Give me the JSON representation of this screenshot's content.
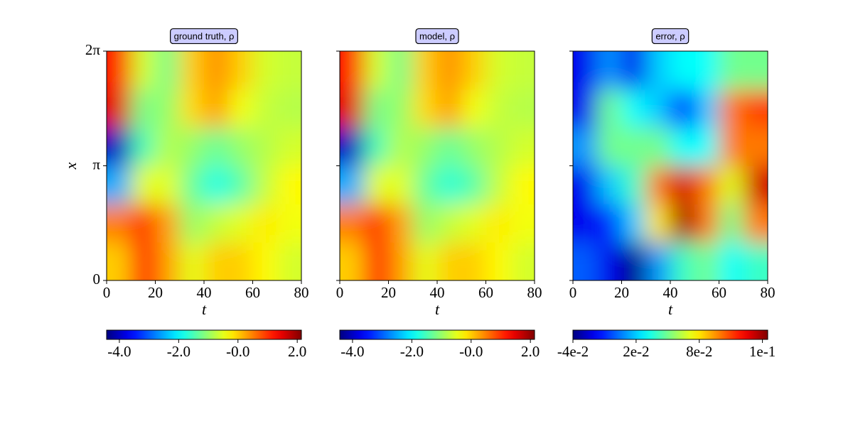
{
  "chart_data": [
    {
      "type": "heatmap",
      "title": "ground truth, ρ",
      "xlabel": "t",
      "ylabel": "x",
      "colormap": "jet",
      "x": [
        5,
        15,
        25,
        35,
        45,
        55,
        65,
        75
      ],
      "y": [
        0.52,
        1.57,
        2.62,
        3.67,
        4.71,
        5.76
      ],
      "z": [
        [
          0,
          1.3,
          0.3,
          -0.5,
          0,
          0,
          -0.3,
          -0.6
        ],
        [
          0.5,
          1.0,
          0.3,
          -1,
          -0.7,
          -0.5,
          -0.2,
          -0.4
        ],
        [
          -2.5,
          -0.5,
          -0.5,
          -1.3,
          -1.8,
          -1.4,
          -0.7,
          -0.3
        ],
        [
          -4,
          -1.5,
          -0.8,
          -1,
          -1.3,
          -1,
          -0.8,
          -0.6
        ],
        [
          1.5,
          -1.2,
          -1,
          -0.1,
          0.3,
          -0.4,
          -0.7,
          -0.8
        ],
        [
          1.2,
          -0.6,
          -1.2,
          0,
          0.4,
          0,
          -0.6,
          -0.7
        ]
      ],
      "xlim": [
        0,
        80
      ],
      "xticks": [
        0,
        20,
        40,
        60,
        80
      ],
      "ylim": [
        0,
        6.28318
      ],
      "yticks": [
        0,
        {
          "value": 3.14159,
          "label": "π"
        },
        {
          "value": 6.28318,
          "label": "2π"
        }
      ],
      "clim": [
        -4.43,
        2.14
      ],
      "cticks": [
        {
          "value": -4,
          "label": "-4.0"
        },
        {
          "value": -2,
          "label": "-2.0"
        },
        {
          "value": 0,
          "label": "-0.0"
        },
        {
          "value": 2,
          "label": "2.0"
        }
      ]
    },
    {
      "type": "heatmap",
      "title": "model, ρ",
      "xlabel": "t",
      "colormap": "jet",
      "x": [
        5,
        15,
        25,
        35,
        45,
        55,
        65,
        75
      ],
      "y": [
        0.52,
        1.57,
        2.62,
        3.67,
        4.71,
        5.76
      ],
      "z": [
        [
          0,
          1.3,
          0.3,
          -0.5,
          0,
          0,
          -0.3,
          -0.6
        ],
        [
          0.5,
          1.0,
          0.3,
          -1,
          -0.7,
          -0.5,
          -0.2,
          -0.4
        ],
        [
          -2.5,
          -0.5,
          -0.5,
          -1.3,
          -1.7,
          -1.4,
          -0.7,
          -0.3
        ],
        [
          -4,
          -1.5,
          -0.8,
          -1,
          -1.3,
          -1,
          -0.8,
          -0.6
        ],
        [
          1.5,
          -1.2,
          -1,
          -0.1,
          0.3,
          -0.4,
          -0.7,
          -0.8
        ],
        [
          1.2,
          -0.6,
          -1.2,
          0,
          0.4,
          0,
          -0.6,
          -0.7
        ]
      ],
      "xlim": [
        0,
        80
      ],
      "xticks": [
        0,
        20,
        40,
        60,
        80
      ],
      "clim": [
        -4.43,
        2.14
      ],
      "cticks": [
        {
          "value": -4,
          "label": "-4.0"
        },
        {
          "value": -2,
          "label": "-2.0"
        },
        {
          "value": 0,
          "label": "-0.0"
        },
        {
          "value": 2,
          "label": "2.0"
        }
      ]
    },
    {
      "type": "heatmap",
      "title": "error, ρ",
      "xlabel": "t",
      "colormap": "jet",
      "x": [
        5,
        15,
        25,
        35,
        45,
        55,
        65,
        75
      ],
      "y": [
        0.52,
        1.57,
        2.62,
        3.67,
        4.71,
        5.76
      ],
      "z": [
        [
          0,
          -0.02,
          -0.04,
          0.01,
          0.04,
          0.05,
          0.03,
          0.04
        ],
        [
          -0.02,
          -0.01,
          0.02,
          0.08,
          0.14,
          0.1,
          0.05,
          0.1
        ],
        [
          -0.02,
          0.02,
          0.04,
          0.1,
          0.13,
          0.1,
          0.07,
          0.13
        ],
        [
          0.01,
          0.05,
          0.05,
          0.05,
          0.03,
          0.03,
          0.1,
          0.1
        ],
        [
          -0.02,
          0.05,
          0.03,
          0.02,
          -0.01,
          0.02,
          0.1,
          0.11
        ],
        [
          -0.02,
          0.01,
          -0.02,
          0.02,
          0.03,
          0.03,
          0.05,
          0.05
        ]
      ],
      "xlim": [
        0,
        80
      ],
      "xticks": [
        0,
        20,
        40,
        60,
        80
      ],
      "clim": [
        -0.04,
        0.145
      ],
      "cticks": [
        {
          "value": -0.04,
          "label": "-4e-2"
        },
        {
          "value": 0.02,
          "label": "2e-2"
        },
        {
          "value": 0.08,
          "label": "8e-2"
        },
        {
          "value": 0.14,
          "label": "1e-1"
        }
      ]
    }
  ]
}
